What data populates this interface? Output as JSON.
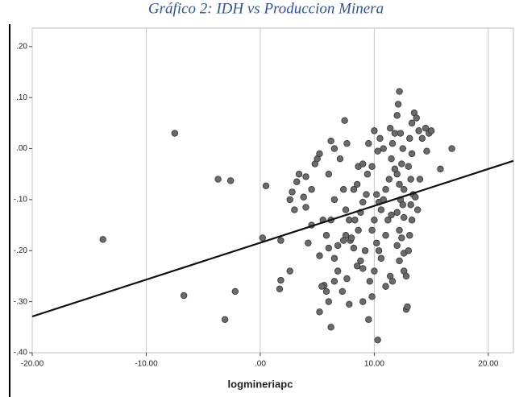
{
  "chart_data": {
    "type": "scatter",
    "title": "Gráfico 2: IDH vs Produccion Minera",
    "x_label": "logmineriapc",
    "color": "#6b6b6b",
    "line_color": "#111111",
    "grid": "x",
    "xlim": [
      -20,
      22.2
    ],
    "ylim": [
      -0.4,
      0.236
    ],
    "xticks": [
      {
        "value": -20,
        "label": "-20.00"
      },
      {
        "value": -10,
        "label": "-10.00"
      },
      {
        "value": 0,
        "label": ".00"
      },
      {
        "value": 10,
        "label": "10.00"
      },
      {
        "value": 20,
        "label": "20.00"
      }
    ],
    "yticks": [
      {
        "value": 0.2,
        "label": ".20"
      },
      {
        "value": 0.1,
        "label": ".10"
      },
      {
        "value": 0,
        "label": ".00"
      },
      {
        "value": -0.1,
        "label": "-.10"
      },
      {
        "value": -0.2,
        "label": "-.20"
      },
      {
        "value": -0.3,
        "label": "-.30"
      },
      {
        "value": -0.4,
        "label": "-.40"
      }
    ],
    "x": [
      -13.8,
      -7.5,
      -3.7,
      -2.6,
      -2.2,
      -6.7,
      -3.1,
      0.5,
      0.2,
      1.8,
      1.8,
      1.7,
      2.6,
      2.8,
      2.6,
      3,
      3.2,
      3.4,
      3.8,
      4,
      4.5,
      4.8,
      5,
      5.2,
      5.5,
      4.5,
      4.2,
      5.2,
      5.8,
      5.6,
      5.2,
      6,
      6.2,
      6.5,
      6.8,
      6.5,
      6,
      5.8,
      6.2,
      6.5,
      6,
      6.5,
      6.2,
      7,
      7.3,
      7.5,
      7.8,
      7.5,
      7.3,
      7.9,
      8.2,
      7.6,
      7.8,
      7.2,
      8.5,
      8.8,
      9,
      9.2,
      8.6,
      8.3,
      8.8,
      9,
      9.3,
      8.5,
      8.6,
      9.4,
      9,
      7.4,
      7.6,
      8.2,
      9.5,
      9.8,
      10,
      10.3,
      10.5,
      10.2,
      10.4,
      10.6,
      10.8,
      10,
      9.8,
      10.2,
      10.4,
      10.6,
      10,
      9.6,
      9.8,
      9.5,
      10.3,
      11,
      11.4,
      11.6,
      11,
      11.2,
      11.5,
      11,
      11.3,
      11.5,
      11.6,
      11.8,
      12,
      12.1,
      12.2,
      12.3,
      12.5,
      12.4,
      12,
      12.2,
      12.6,
      12.3,
      12.5,
      12,
      12.6,
      12.2,
      12.4,
      12,
      12.6,
      12.2,
      12.6,
      12.8,
      12.8,
      12.9,
      13,
      13.1,
      13.3,
      13.2,
      13.4,
      13.2,
      13,
      13.3,
      13.1,
      13.3,
      13.5,
      13.7,
      13.9,
      14.2,
      14.5,
      14.8,
      15,
      14.6,
      14,
      13.8,
      13.6,
      15.8,
      16.8,
      11.8,
      9,
      8,
      6.8,
      5.4,
      4,
      11.4,
      10.8
    ],
    "values": [
      -0.178,
      0.03,
      -0.06,
      -0.063,
      -0.28,
      -0.288,
      -0.335,
      -0.073,
      -0.175,
      -0.18,
      -0.258,
      -0.275,
      -0.24,
      -0.085,
      -0.1,
      -0.12,
      -0.065,
      -0.05,
      -0.095,
      -0.115,
      -0.08,
      -0.03,
      -0.02,
      -0.01,
      -0.14,
      -0.15,
      -0.185,
      -0.21,
      -0.28,
      -0.268,
      -0.32,
      -0.3,
      -0.35,
      -0.26,
      -0.24,
      -0.215,
      -0.195,
      -0.17,
      -0.14,
      -0.1,
      -0.05,
      0,
      0.015,
      -0.02,
      -0.08,
      -0.12,
      -0.14,
      -0.17,
      -0.18,
      -0.18,
      -0.195,
      -0.255,
      -0.305,
      -0.28,
      -0.23,
      -0.22,
      -0.235,
      -0.2,
      -0.16,
      -0.14,
      -0.125,
      -0.105,
      -0.09,
      -0.07,
      -0.035,
      -0.05,
      -0.03,
      0.055,
      0.01,
      -0.08,
      0.01,
      -0.035,
      0.035,
      -0.005,
      0.02,
      -0.09,
      -0.105,
      -0.12,
      -0.1,
      -0.14,
      -0.16,
      -0.185,
      -0.2,
      -0.215,
      -0.24,
      -0.26,
      -0.29,
      -0.335,
      -0.375,
      -0.27,
      -0.25,
      -0.26,
      -0.17,
      -0.14,
      -0.13,
      -0.08,
      -0.06,
      -0.02,
      0.01,
      0.03,
      0.065,
      0.087,
      0.112,
      0.03,
      0,
      -0.03,
      -0.05,
      -0.07,
      -0.08,
      -0.1,
      -0.11,
      -0.125,
      -0.135,
      -0.16,
      -0.175,
      -0.19,
      -0.205,
      -0.22,
      -0.24,
      -0.25,
      -0.315,
      -0.31,
      -0.2,
      -0.17,
      -0.14,
      -0.11,
      -0.09,
      -0.06,
      -0.035,
      -0.01,
      0.02,
      0.05,
      0.07,
      0.06,
      0.035,
      0.02,
      0.04,
      0.03,
      0.035,
      -0.005,
      -0.06,
      -0.12,
      -0.095,
      -0.04,
      0,
      -0.04,
      -0.3,
      -0.175,
      -0.19,
      -0.27,
      -0.055,
      0.04,
      0
    ],
    "fit_line": {
      "x": [
        -20,
        22.2
      ],
      "values": [
        -0.329,
        -0.024
      ]
    }
  }
}
